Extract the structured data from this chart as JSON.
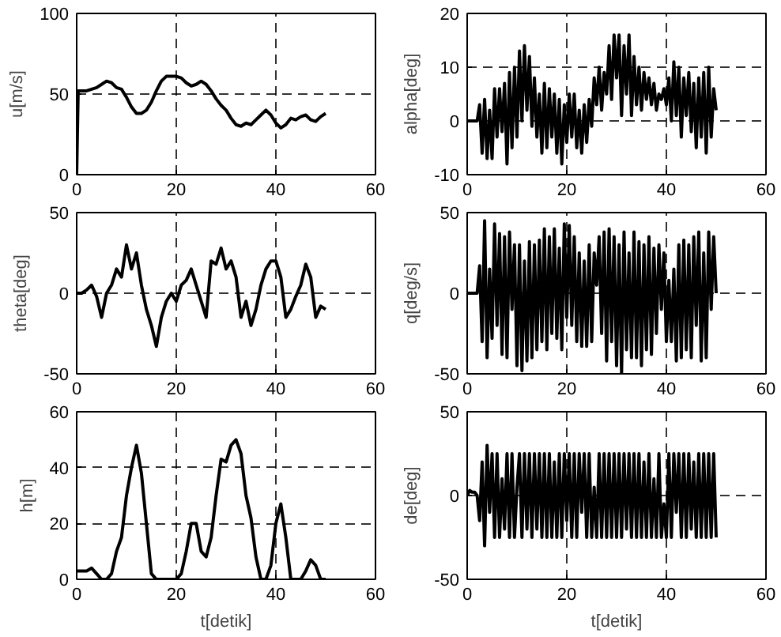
{
  "chart_data": [
    {
      "type": "line",
      "ylabel": "u[m/s]",
      "xlim": [
        0,
        60
      ],
      "ylim": [
        0,
        100
      ],
      "xticks": [
        0,
        20,
        40,
        60
      ],
      "yticks": [
        0,
        50,
        100
      ],
      "grid": true,
      "line_style": "solid",
      "color": "#000000",
      "x": [
        0,
        0.3,
        1,
        2,
        3,
        4,
        5,
        6,
        7,
        8,
        9,
        10,
        11,
        12,
        13,
        14,
        15,
        16,
        17,
        18,
        19,
        20,
        21,
        22,
        23,
        24,
        25,
        26,
        27,
        28,
        29,
        30,
        31,
        32,
        33,
        34,
        35,
        36,
        37,
        38,
        39,
        40,
        41,
        42,
        43,
        44,
        45,
        46,
        47,
        48,
        49,
        50
      ],
      "values": [
        0,
        52,
        52,
        52,
        53,
        54,
        56,
        58,
        57,
        54,
        53,
        48,
        42,
        38,
        38,
        40,
        45,
        52,
        58,
        61,
        61,
        61,
        60,
        57,
        55,
        56,
        58,
        56,
        52,
        47,
        43,
        40,
        35,
        31,
        30,
        32,
        31,
        34,
        37,
        40,
        37,
        32,
        29,
        31,
        35,
        34,
        36,
        37,
        34,
        33,
        36,
        38
      ]
    },
    {
      "type": "line",
      "ylabel": "alpha[deg]",
      "xlim": [
        0,
        60
      ],
      "ylim": [
        -10,
        20
      ],
      "xticks": [
        0,
        20,
        40,
        60
      ],
      "yticks": [
        -10,
        0,
        10,
        20
      ],
      "grid": true,
      "line_style": "solid",
      "color": "#000000",
      "x": [
        0,
        0.5,
        1,
        1.5,
        2,
        2.5,
        3,
        3.5,
        4,
        4.5,
        5,
        5.5,
        6,
        6.5,
        7,
        7.5,
        8,
        8.5,
        9,
        9.5,
        10,
        10.5,
        11,
        11.5,
        12,
        12.5,
        13,
        13.5,
        14,
        14.5,
        15,
        15.5,
        16,
        16.5,
        17,
        17.5,
        18,
        18.5,
        19,
        19.5,
        20,
        20.5,
        21,
        21.5,
        22,
        22.5,
        23,
        23.5,
        24,
        24.5,
        25,
        25.5,
        26,
        26.5,
        27,
        27.5,
        28,
        28.5,
        29,
        29.5,
        30,
        30.5,
        31,
        31.5,
        32,
        32.5,
        33,
        33.5,
        34,
        34.5,
        35,
        35.5,
        36,
        36.5,
        37,
        37.5,
        38,
        38.5,
        39,
        39.5,
        40,
        40.5,
        41,
        41.5,
        42,
        42.5,
        43,
        43.5,
        44,
        44.5,
        45,
        45.5,
        46,
        46.5,
        47,
        47.5,
        48,
        48.5,
        49,
        49.5,
        50
      ],
      "values": [
        0,
        0,
        0,
        0,
        0,
        3,
        -6,
        4,
        -7,
        2,
        -7,
        6,
        -3,
        6,
        -2,
        7,
        -8,
        9,
        -5,
        10,
        -3,
        13,
        0,
        14,
        2,
        12,
        -1,
        8,
        -3,
        5,
        -6,
        7,
        -5,
        6,
        -3,
        5,
        -6,
        4,
        -8,
        3,
        -4,
        5,
        -3,
        5,
        -5,
        2,
        -6,
        3,
        -4,
        4,
        -1,
        8,
        3,
        10,
        2,
        9,
        5,
        14,
        4,
        16,
        8,
        16,
        1,
        14,
        5,
        16,
        1,
        12,
        3,
        10,
        2,
        9,
        4,
        8,
        3,
        7,
        2,
        5,
        4,
        6,
        3,
        8,
        0,
        11,
        1,
        10,
        -3,
        8,
        1,
        9,
        -2,
        7,
        -5,
        8,
        -3,
        9,
        -6,
        10,
        -3,
        6,
        2
      ]
    },
    {
      "type": "line",
      "ylabel": "theta[deg]",
      "xlim": [
        0,
        60
      ],
      "ylim": [
        -50,
        50
      ],
      "xticks": [
        0,
        20,
        40,
        60
      ],
      "yticks": [
        -50,
        0,
        50
      ],
      "grid": true,
      "line_style": "solid",
      "color": "#000000",
      "x": [
        0,
        1,
        2,
        3,
        4,
        5,
        6,
        7,
        8,
        9,
        10,
        11,
        12,
        13,
        14,
        15,
        16,
        17,
        18,
        19,
        20,
        21,
        22,
        23,
        24,
        25,
        26,
        27,
        28,
        29,
        30,
        31,
        32,
        33,
        34,
        35,
        36,
        37,
        38,
        39,
        40,
        41,
        42,
        43,
        44,
        45,
        46,
        47,
        48,
        49,
        50
      ],
      "values": [
        0,
        0,
        2,
        5,
        -2,
        -15,
        0,
        5,
        15,
        10,
        30,
        15,
        25,
        5,
        -10,
        -20,
        -33,
        -15,
        -5,
        0,
        -5,
        5,
        8,
        15,
        5,
        -5,
        -15,
        20,
        18,
        28,
        15,
        20,
        10,
        -15,
        -5,
        -20,
        -10,
        5,
        15,
        20,
        20,
        10,
        -15,
        -10,
        -2,
        5,
        18,
        10,
        -15,
        -8,
        -10
      ]
    },
    {
      "type": "line",
      "ylabel": "q[deg/s]",
      "xlim": [
        0,
        60
      ],
      "ylim": [
        -50,
        50
      ],
      "xticks": [
        0,
        20,
        40,
        60
      ],
      "yticks": [
        -50,
        0,
        50
      ],
      "grid": true,
      "line_style": "solid",
      "color": "#000000",
      "x": [
        0,
        0.5,
        1,
        1.5,
        2,
        2.5,
        3,
        3.5,
        4,
        4.5,
        5,
        5.5,
        6,
        6.5,
        7,
        7.5,
        8,
        8.5,
        9,
        9.5,
        10,
        10.5,
        11,
        11.5,
        12,
        12.5,
        13,
        13.5,
        14,
        14.5,
        15,
        15.5,
        16,
        16.5,
        17,
        17.5,
        18,
        18.5,
        19,
        19.5,
        20,
        20.5,
        21,
        21.5,
        22,
        22.5,
        23,
        23.5,
        24,
        24.5,
        25,
        25.5,
        26,
        26.5,
        27,
        27.5,
        28,
        28.5,
        29,
        29.5,
        30,
        30.5,
        31,
        31.5,
        32,
        32.5,
        33,
        33.5,
        34,
        34.5,
        35,
        35.5,
        36,
        36.5,
        37,
        37.5,
        38,
        38.5,
        39,
        39.5,
        40,
        40.5,
        41,
        41.5,
        42,
        42.5,
        43,
        43.5,
        44,
        44.5,
        45,
        45.5,
        46,
        46.5,
        47,
        47.5,
        48,
        48.5,
        49,
        49.5,
        50
      ],
      "values": [
        0,
        0,
        0,
        0,
        0,
        17,
        -30,
        45,
        -40,
        15,
        -28,
        43,
        -20,
        37,
        -38,
        35,
        -40,
        38,
        -10,
        30,
        -45,
        30,
        -48,
        20,
        -42,
        32,
        -40,
        30,
        -35,
        33,
        -30,
        40,
        -35,
        35,
        -25,
        40,
        -28,
        28,
        -35,
        43,
        -15,
        42,
        -20,
        35,
        -30,
        25,
        -33,
        20,
        -33,
        30,
        -30,
        25,
        5,
        35,
        -25,
        38,
        -42,
        40,
        -30,
        35,
        -45,
        30,
        -50,
        38,
        -35,
        25,
        -40,
        38,
        -40,
        32,
        -45,
        30,
        -35,
        35,
        -38,
        28,
        -25,
        30,
        -10,
        25,
        -30,
        8,
        -30,
        15,
        -42,
        30,
        -40,
        33,
        -35,
        30,
        -40,
        35,
        -20,
        38,
        -42,
        25,
        -40,
        38,
        -10,
        35,
        0
      ]
    },
    {
      "type": "line",
      "ylabel": "h[m]",
      "xlabel": "t[detik]",
      "xlim": [
        0,
        60
      ],
      "ylim": [
        0,
        60
      ],
      "xticks": [
        0,
        20,
        40,
        60
      ],
      "yticks": [
        0,
        20,
        40,
        60
      ],
      "grid": true,
      "line_style": "solid",
      "color": "#000000",
      "x": [
        0,
        1,
        2,
        3,
        4,
        5,
        6,
        7,
        8,
        9,
        10,
        11,
        12,
        13,
        14,
        15,
        16,
        17,
        18,
        19,
        20,
        21,
        22,
        23,
        24,
        25,
        26,
        27,
        28,
        29,
        30,
        31,
        32,
        33,
        34,
        35,
        36,
        37,
        38,
        39,
        40,
        41,
        42,
        43,
        44,
        45,
        46,
        47,
        48,
        49,
        50
      ],
      "values": [
        3,
        3,
        3,
        4,
        2,
        0,
        0,
        2,
        10,
        15,
        30,
        40,
        48,
        38,
        20,
        2,
        0,
        0,
        0,
        0,
        0,
        2,
        10,
        20,
        20,
        10,
        8,
        15,
        30,
        43,
        42,
        48,
        50,
        45,
        30,
        22,
        8,
        0,
        0,
        5,
        20,
        27,
        15,
        0,
        0,
        0,
        3,
        7,
        5,
        0,
        0
      ]
    },
    {
      "type": "line",
      "ylabel": "de[deg]",
      "xlabel": "t[detik]",
      "xlim": [
        0,
        60
      ],
      "ylim": [
        -50,
        50
      ],
      "xticks": [
        0,
        20,
        40,
        60
      ],
      "yticks": [
        -50,
        0,
        50
      ],
      "grid": true,
      "line_style": "solid",
      "color": "#000000",
      "x": [
        0,
        0.5,
        1,
        1.5,
        2,
        2.5,
        3,
        3.5,
        4,
        4.5,
        5,
        5.5,
        6,
        6.5,
        7,
        7.5,
        8,
        8.5,
        9,
        9.5,
        10,
        10.5,
        11,
        11.5,
        12,
        12.5,
        13,
        13.5,
        14,
        14.5,
        15,
        15.5,
        16,
        16.5,
        17,
        17.5,
        18,
        18.5,
        19,
        19.5,
        20,
        20.5,
        21,
        21.5,
        22,
        22.5,
        23,
        23.5,
        24,
        24.5,
        25,
        25.5,
        26,
        26.5,
        27,
        27.5,
        28,
        28.5,
        29,
        29.5,
        30,
        30.5,
        31,
        31.5,
        32,
        32.5,
        33,
        33.5,
        34,
        34.5,
        35,
        35.5,
        36,
        36.5,
        37,
        37.5,
        38,
        38.5,
        39,
        39.5,
        40,
        40.5,
        41,
        41.5,
        42,
        42.5,
        43,
        43.5,
        44,
        44.5,
        45,
        45.5,
        46,
        46.5,
        47,
        47.5,
        48,
        48.5,
        49,
        49.5,
        50
      ],
      "values": [
        0,
        3,
        2,
        2,
        0,
        -15,
        20,
        -30,
        30,
        -10,
        25,
        -25,
        25,
        -25,
        10,
        -20,
        25,
        -25,
        25,
        -25,
        5,
        25,
        -25,
        25,
        -20,
        25,
        -25,
        25,
        -20,
        25,
        -25,
        25,
        -25,
        25,
        -25,
        20,
        -25,
        25,
        -25,
        25,
        -15,
        25,
        -25,
        25,
        -25,
        25,
        -10,
        25,
        -25,
        25,
        -25,
        5,
        -25,
        25,
        -25,
        25,
        -25,
        25,
        -25,
        25,
        -25,
        25,
        -25,
        25,
        -20,
        25,
        -25,
        25,
        -25,
        25,
        -25,
        20,
        -25,
        25,
        -25,
        10,
        -25,
        25,
        -25,
        -5,
        -25,
        25,
        -25,
        25,
        -10,
        25,
        -25,
        25,
        -25,
        25,
        -20,
        20,
        -25,
        25,
        -25,
        25,
        -25,
        25,
        -25,
        25,
        -25
      ]
    }
  ]
}
